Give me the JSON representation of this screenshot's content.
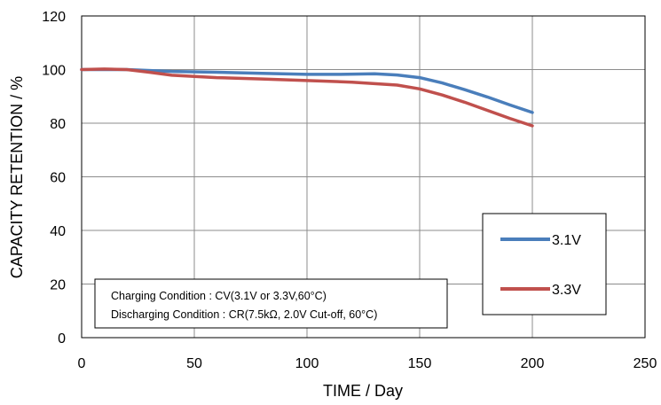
{
  "chart_data": {
    "type": "line",
    "xlabel": "TIME / Day",
    "ylabel": "CAPACITY RETENTION / %",
    "xlim": [
      0,
      250
    ],
    "ylim": [
      0,
      120
    ],
    "xticks": [
      0,
      50,
      100,
      150,
      200,
      250
    ],
    "yticks": [
      0,
      20,
      40,
      60,
      80,
      100,
      120
    ],
    "grid": true,
    "legend_position": "right",
    "series": [
      {
        "name": "3.1V",
        "color": "#4a7ebb",
        "x": [
          0,
          10,
          20,
          40,
          60,
          80,
          100,
          115,
          130,
          140,
          150,
          160,
          170,
          180,
          190,
          200
        ],
        "y": [
          100,
          100,
          100,
          99.3,
          99,
          98.6,
          98.2,
          98.2,
          98.4,
          98,
          97,
          95,
          92.5,
          89.8,
          86.8,
          84
        ]
      },
      {
        "name": "3.3V",
        "color": "#c0504d",
        "x": [
          0,
          10,
          20,
          30,
          40,
          60,
          80,
          100,
          120,
          140,
          150,
          160,
          170,
          180,
          190,
          200
        ],
        "y": [
          100,
          100.2,
          100,
          99,
          97.9,
          97,
          96.5,
          95.9,
          95.3,
          94.2,
          92.8,
          90.5,
          87.8,
          84.8,
          81.8,
          79
        ]
      }
    ],
    "annotations": [
      "Charging Condition : CV(3.1V or 3.3V,60°C)",
      "Discharging Condition : CR(7.5kΩ, 2.0V Cut-off, 60°C)"
    ]
  }
}
